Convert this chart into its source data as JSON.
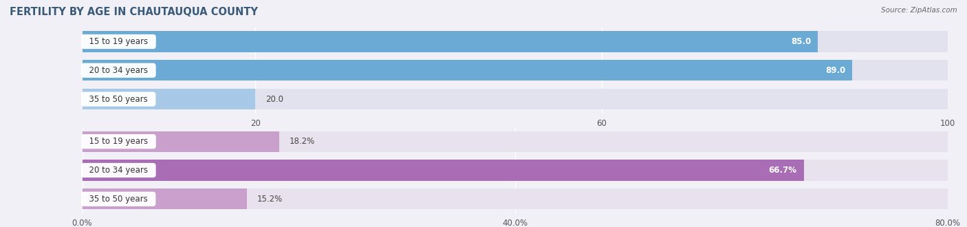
{
  "title": "FERTILITY BY AGE IN CHAUTAUQUA COUNTY",
  "source": "Source: ZipAtlas.com",
  "top_chart": {
    "categories": [
      "15 to 19 years",
      "20 to 34 years",
      "35 to 50 years"
    ],
    "values": [
      85.0,
      89.0,
      20.0
    ],
    "bar_colors": [
      "#6aaad4",
      "#6aaad4",
      "#a8c8e8"
    ],
    "bar_bg_color": "#e2e2ee",
    "xlim": [
      0,
      100
    ],
    "xticks": [
      20.0,
      60.0,
      100.0
    ],
    "value_labels": [
      "85.0",
      "89.0",
      "20.0"
    ],
    "label_inside": [
      true,
      true,
      false
    ]
  },
  "bottom_chart": {
    "categories": [
      "15 to 19 years",
      "20 to 34 years",
      "35 to 50 years"
    ],
    "values": [
      18.2,
      66.7,
      15.2
    ],
    "bar_colors": [
      "#c9a0cc",
      "#a96db5",
      "#c9a0cc"
    ],
    "bar_bg_color": "#e8e2ee",
    "xlim": [
      0,
      80
    ],
    "xticks": [
      0.0,
      40.0,
      80.0
    ],
    "xtick_labels": [
      "0.0%",
      "40.0%",
      "80.0%"
    ],
    "value_labels": [
      "18.2%",
      "66.7%",
      "15.2%"
    ],
    "label_inside": [
      false,
      true,
      false
    ]
  },
  "fig_bg_color": "#f0f0f6",
  "label_font_size": 8.5,
  "tick_font_size": 8.5,
  "title_font_size": 10.5,
  "bar_height": 0.72
}
